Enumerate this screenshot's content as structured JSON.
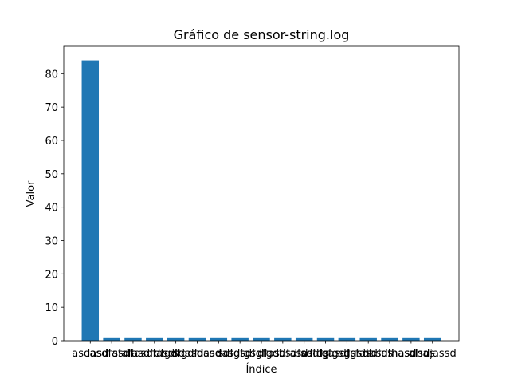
{
  "chart_data": {
    "type": "bar",
    "title": "Gráfico de sensor-string.log",
    "x_label": "Índice",
    "y_label": "Valor",
    "categories": [
      "asdasd",
      "asdfasdf",
      "sfafasdf",
      "fasdfasdf",
      "dfgdfgdf",
      "sdasdasd",
      "dsadasd",
      "sdfgsdfg",
      "fgsdfgdf",
      "dfasdfasd",
      "asdfasdfg",
      "sdfdsfgsg",
      "gasdfgsdf",
      "dsfasdfas",
      "hasdfhasd",
      "fhasdhas",
      "alsdjassd"
    ],
    "values": [
      84,
      1,
      1,
      1,
      1,
      1,
      1,
      1,
      1,
      1,
      1,
      1,
      1,
      1,
      1,
      1,
      1
    ],
    "color": "#1f77b4",
    "ylim": [
      0,
      88.2
    ],
    "yticks": [
      0,
      10,
      20,
      30,
      40,
      50,
      60,
      70,
      80
    ]
  }
}
